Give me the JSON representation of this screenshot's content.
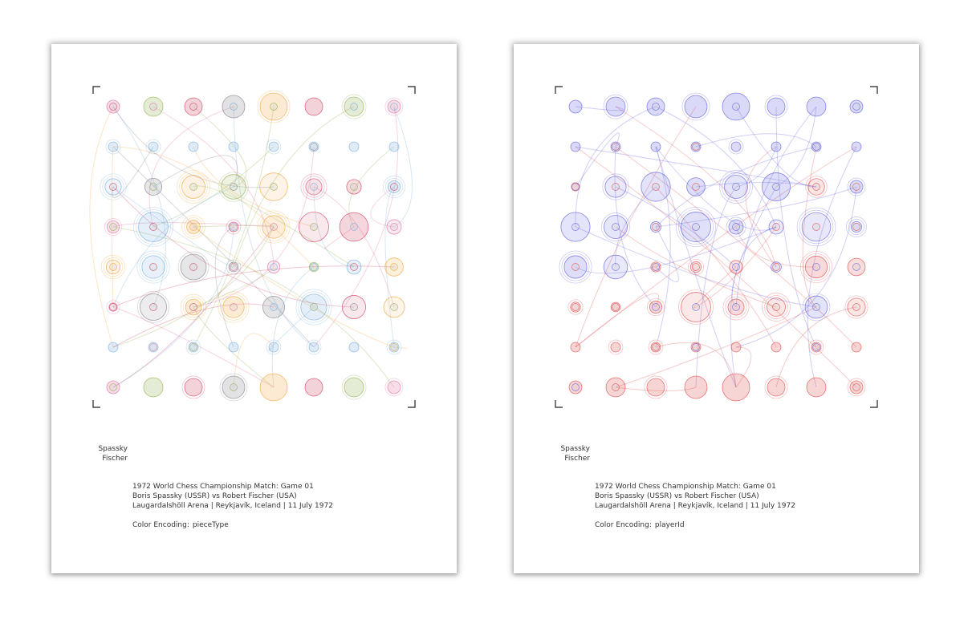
{
  "posters": [
    {
      "id": "left",
      "white_player": "Spassky",
      "black_player": "Fischer",
      "title": "1972 World Chess Championship Match: Game 01",
      "players": "Boris Spassky (USSR) vs Robert Fischer (USA)",
      "venue": "Laugardalshöll Arena | Reykjavík, Iceland | 11 July 1972",
      "encoding_label": "Color Encoding:",
      "encoding_value": "pieceType"
    },
    {
      "id": "right",
      "white_player": "Spassky",
      "black_player": "Fischer",
      "title": "1972 World Chess Championship Match: Game 01",
      "players": "Boris Spassky (USSR) vs Robert Fischer (USA)",
      "venue": "Laugardalshöll Arena | Reykjavík, Iceland | 11 July 1972",
      "encoding_label": "Color Encoding:",
      "encoding_value": "playerId"
    }
  ],
  "colors": {
    "pawn": "#6fa8dc",
    "rook": "#e06699",
    "knight": "#8aaa44",
    "bishop": "#cc3355",
    "queen": "#7a7a88",
    "king": "#f0a030",
    "white_player": "#e04040",
    "black_player": "#5555dd",
    "shadow": "#cccccc"
  },
  "icons": {
    "corner": "crop-mark-icon"
  }
}
